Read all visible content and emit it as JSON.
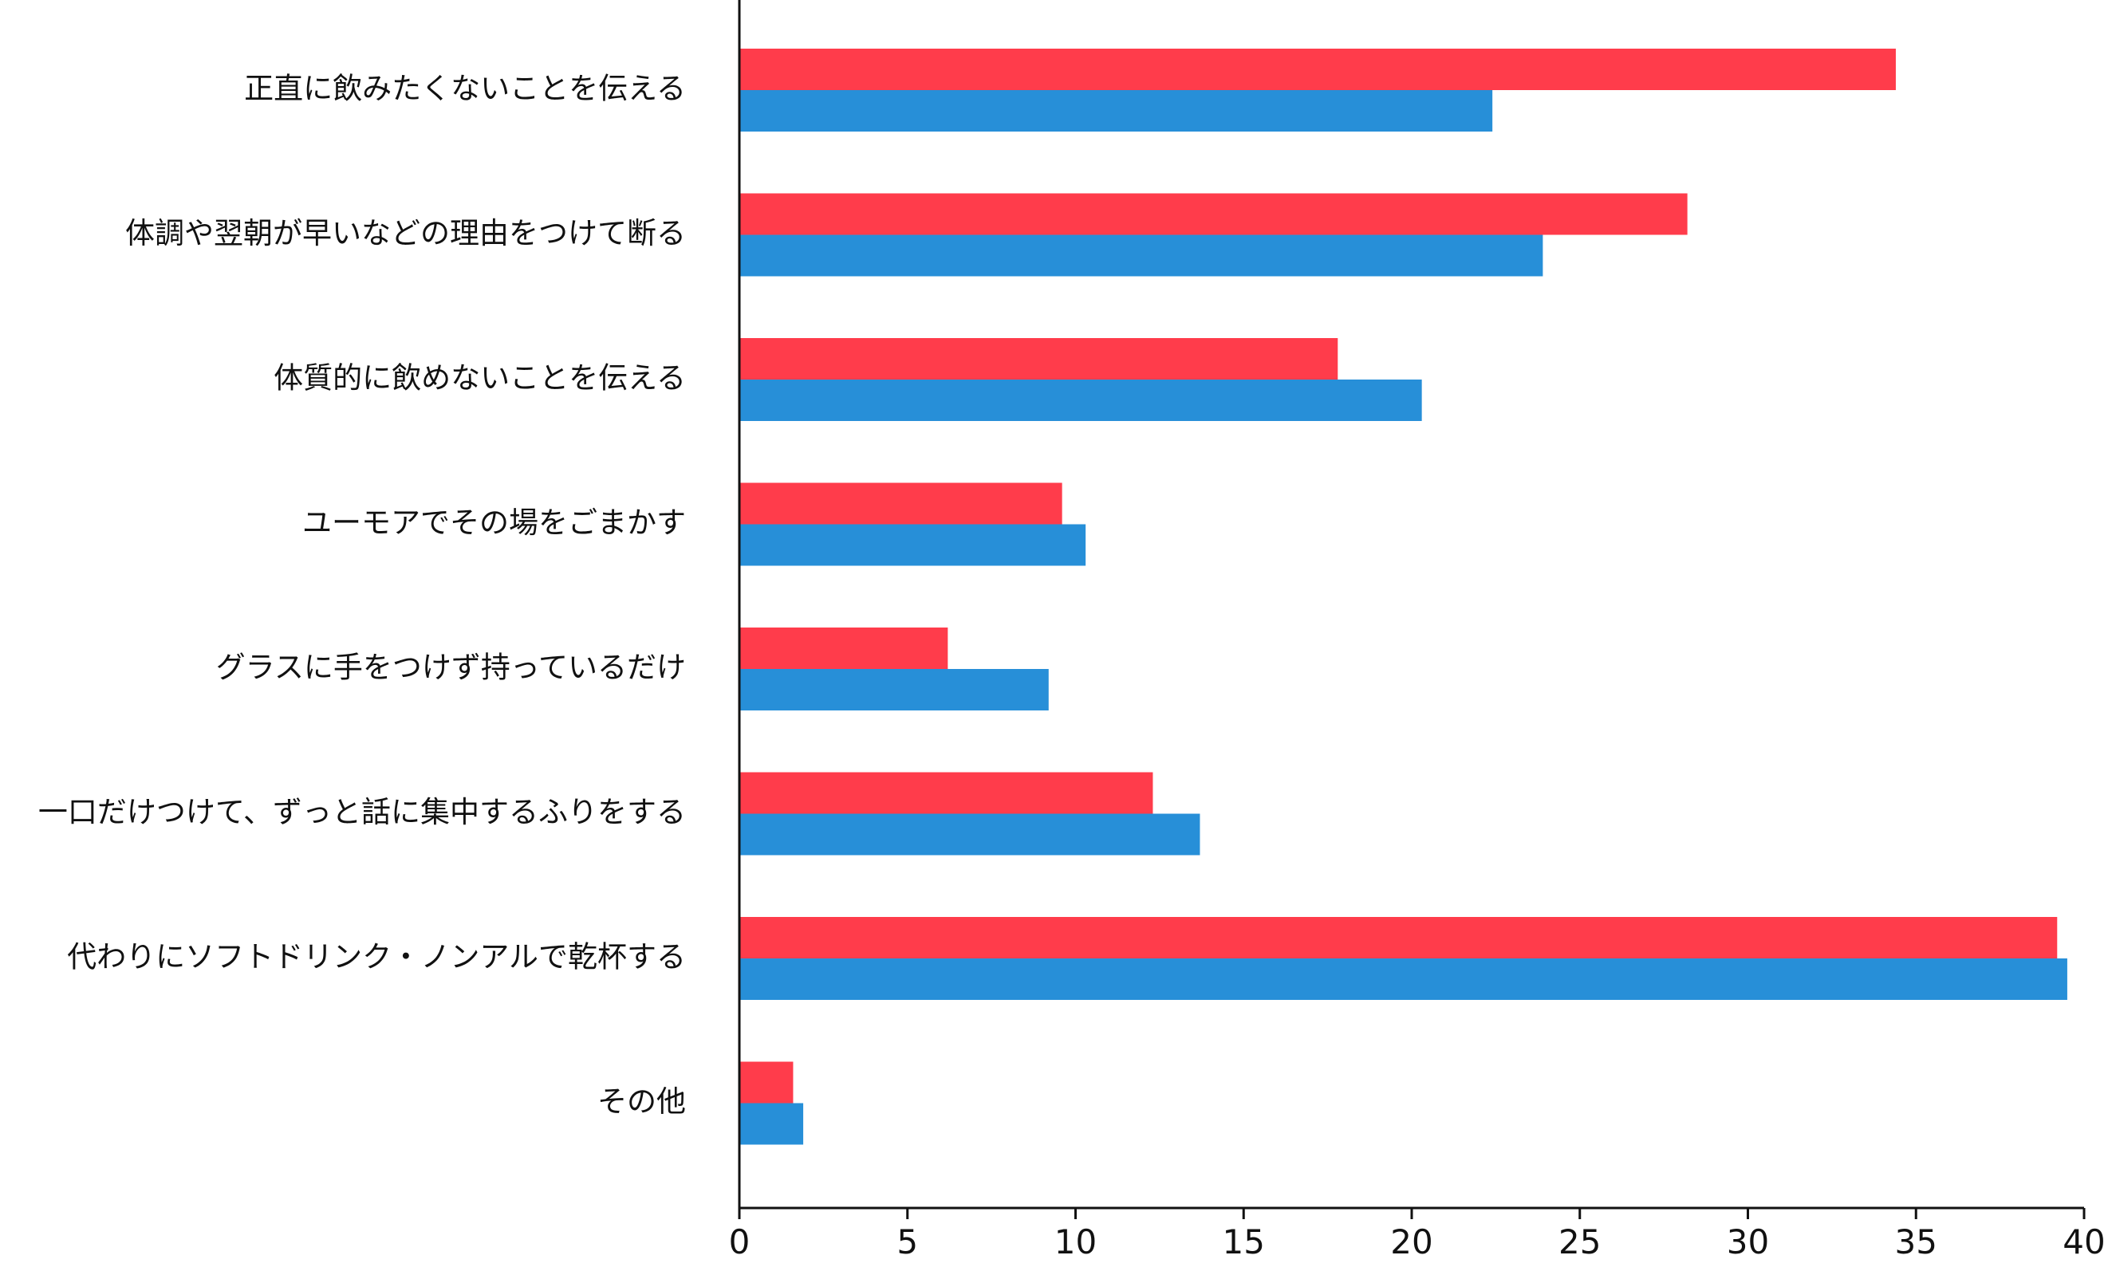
{
  "chart_data": {
    "type": "bar",
    "orientation": "horizontal",
    "categories": [
      "正直に飲みたくないことを伝える",
      "体調や翌朝が早いなどの理由をつけて断る",
      "体質的に飲めないことを伝える",
      "ユーモアでその場をごまかす",
      "グラスに手をつけず持っているだけ",
      "一口だけつけて、ずっと話に集中するふりをする",
      "代わりにソフトドリンク・ノンアルで乾杯する",
      "その他"
    ],
    "series": [
      {
        "color": "#FF3C4B",
        "values": [
          34.4,
          28.2,
          17.8,
          9.6,
          6.2,
          12.3,
          39.2,
          1.6
        ]
      },
      {
        "color": "#278FD8",
        "values": [
          22.4,
          23.9,
          20.3,
          10.3,
          9.2,
          13.7,
          39.5,
          1.9
        ]
      }
    ],
    "xlim": [
      0,
      40
    ],
    "xticks": [
      "0",
      "5",
      "10",
      "15",
      "20",
      "25",
      "30",
      "35",
      "40"
    ],
    "xlabel": "",
    "ylabel": "",
    "title": "",
    "grid": false,
    "legend": "none"
  }
}
